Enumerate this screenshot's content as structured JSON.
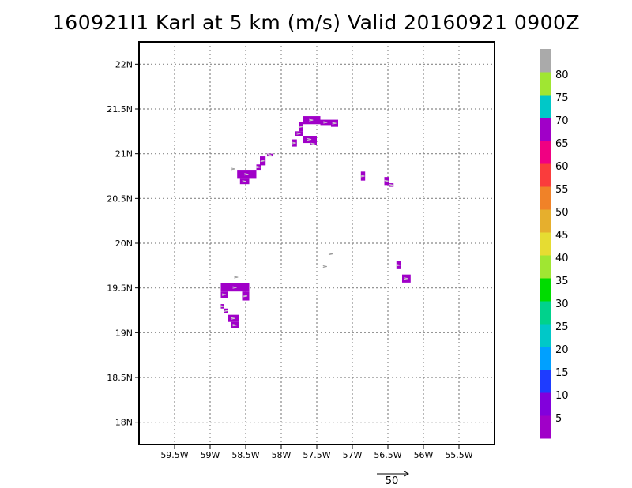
{
  "title": "160921I1 Karl at 5 km (m/s) Valid 20160921  0900Z",
  "chart_data": {
    "type": "heatmap",
    "title": "160921I1 Karl at 5 km (m/s) Valid 20160921  0900Z",
    "xlabel": "",
    "ylabel": "",
    "xlim": [
      -60,
      -55
    ],
    "ylim": [
      17.75,
      22.25
    ],
    "grid": true,
    "x_ticks": [
      -59.5,
      -59,
      -58.5,
      -58,
      -57.5,
      -57,
      -56.5,
      -56,
      -55.5
    ],
    "x_tick_labels": [
      "59.5W",
      "59W",
      "58.5W",
      "58W",
      "57.5W",
      "57W",
      "56.5W",
      "56W",
      "55.5W"
    ],
    "y_ticks": [
      18,
      18.5,
      19,
      19.5,
      20,
      20.5,
      21,
      21.5,
      22
    ],
    "y_tick_labels": [
      "18N",
      "18.5N",
      "19N",
      "19.5N",
      "20N",
      "20.5N",
      "21N",
      "21.5N",
      "22N"
    ],
    "colorbar": {
      "labels": [
        "5",
        "10",
        "15",
        "20",
        "25",
        "30",
        "35",
        "40",
        "45",
        "50",
        "55",
        "60",
        "65",
        "70",
        "75",
        "80"
      ],
      "colors": [
        "#a000c8",
        "#8200dc",
        "#1e3cff",
        "#00a0ff",
        "#00c8c8",
        "#00d28c",
        "#00dc00",
        "#a0e632",
        "#e6dc32",
        "#e6af2d",
        "#f08228",
        "#fa3c3c",
        "#f00082",
        "#a000c8",
        "#00c8c8",
        "#a0e632",
        "#aaaaaa"
      ]
    },
    "wind_regions_5_10ms": [
      {
        "lon": [
          -57.7,
          -57.45
        ],
        "lat": [
          21.33,
          21.42
        ]
      },
      {
        "lon": [
          -57.45,
          -57.3
        ],
        "lat": [
          21.32,
          21.38
        ]
      },
      {
        "lon": [
          -57.3,
          -57.2
        ],
        "lat": [
          21.3,
          21.38
        ]
      },
      {
        "lon": [
          -57.75,
          -57.7
        ],
        "lat": [
          21.25,
          21.35
        ]
      },
      {
        "lon": [
          -57.8,
          -57.7
        ],
        "lat": [
          21.2,
          21.25
        ]
      },
      {
        "lon": [
          -57.7,
          -57.5
        ],
        "lat": [
          21.12,
          21.2
        ]
      },
      {
        "lon": [
          -57.85,
          -57.78
        ],
        "lat": [
          21.08,
          21.16
        ]
      },
      {
        "lon": [
          -57.6,
          -57.5
        ],
        "lat": [
          21.1,
          21.12
        ]
      },
      {
        "lon": [
          -58.2,
          -58.12
        ],
        "lat": [
          20.97,
          21.0
        ]
      },
      {
        "lon": [
          -58.3,
          -58.22
        ],
        "lat": [
          20.87,
          20.97
        ]
      },
      {
        "lon": [
          -58.35,
          -58.28
        ],
        "lat": [
          20.82,
          20.88
        ]
      },
      {
        "lon": [
          -58.62,
          -58.35
        ],
        "lat": [
          20.72,
          20.82
        ]
      },
      {
        "lon": [
          -58.58,
          -58.45
        ],
        "lat": [
          20.66,
          20.72
        ]
      },
      {
        "lon": [
          -56.88,
          -56.82
        ],
        "lat": [
          20.7,
          20.8
        ]
      },
      {
        "lon": [
          -56.55,
          -56.48
        ],
        "lat": [
          20.65,
          20.74
        ]
      },
      {
        "lon": [
          -56.48,
          -56.42
        ],
        "lat": [
          20.63,
          20.67
        ]
      },
      {
        "lon": [
          -56.38,
          -56.32
        ],
        "lat": [
          19.71,
          19.8
        ]
      },
      {
        "lon": [
          -56.3,
          -56.18
        ],
        "lat": [
          19.56,
          19.65
        ]
      },
      {
        "lon": [
          -58.85,
          -58.45
        ],
        "lat": [
          19.46,
          19.55
        ]
      },
      {
        "lon": [
          -58.85,
          -58.75
        ],
        "lat": [
          19.39,
          19.46
        ]
      },
      {
        "lon": [
          -58.55,
          -58.45
        ],
        "lat": [
          19.36,
          19.46
        ]
      },
      {
        "lon": [
          -58.85,
          -58.8
        ],
        "lat": [
          19.27,
          19.32
        ]
      },
      {
        "lon": [
          -58.8,
          -58.75
        ],
        "lat": [
          19.22,
          19.27
        ]
      },
      {
        "lon": [
          -58.75,
          -58.6
        ],
        "lat": [
          19.12,
          19.2
        ]
      },
      {
        "lon": [
          -58.7,
          -58.6
        ],
        "lat": [
          19.05,
          19.12
        ]
      }
    ],
    "reference_vector": {
      "label": "50"
    }
  }
}
